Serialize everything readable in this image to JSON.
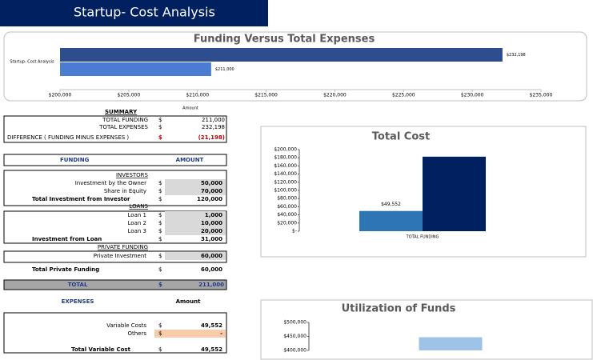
{
  "header": {
    "title": "Startup- Cost Analysis"
  },
  "summary": {
    "title": "SUMMARY",
    "amount_header": "Amount",
    "rows": [
      [
        "TOTAL FUNDING",
        "$",
        "211,000"
      ],
      [
        "TOTAL EXPENSES",
        "$",
        "232,198"
      ],
      [
        "DIFFERENCE ( FUNDING MINUS EXPENSES )",
        "$",
        "(21,198)"
      ]
    ]
  },
  "funding": {
    "headers": [
      "FUNDING",
      "AMOUNT"
    ],
    "sections": [
      {
        "title": "INVESTORS",
        "rows": [
          [
            "Investment by the Owner",
            "$",
            "50,000"
          ],
          [
            "Share in Equity",
            "$",
            "70,000"
          ]
        ],
        "total": [
          "Total Investment from Investor",
          "$",
          "120,000"
        ]
      },
      {
        "title": "LOANS",
        "rows": [
          [
            "Loan 1",
            "$",
            "1,000"
          ],
          [
            "Loan 2",
            "$",
            "10,000"
          ],
          [
            "Loan 3",
            "$",
            "20,000"
          ]
        ],
        "total": [
          "Investment from Loan",
          "$",
          "31,000"
        ]
      },
      {
        "title": "PRIVATE FUNDING",
        "rows": [
          [
            "Private Investment",
            "$",
            "60,000"
          ]
        ],
        "total": [
          "Total Private Funding",
          "$",
          "60,000"
        ]
      }
    ],
    "total": [
      "TOTAL",
      "$",
      "211,000"
    ]
  },
  "expenses": {
    "headers": [
      "EXPENSES",
      "Amount"
    ],
    "rows": [
      [
        "Variable Costs",
        "$",
        "49,552"
      ],
      [
        "Others",
        "$",
        "-"
      ]
    ],
    "total": [
      "Total Variable Cost",
      "$",
      "49,552"
    ]
  },
  "chart_data": [
    {
      "type": "hbar",
      "title": "Funding Versus Total Expenses",
      "categories": [
        "Startup- Cost Analysis"
      ],
      "series": [
        {
          "color": "#2e4d8e",
          "values": [
            232198
          ],
          "value_labels": [
            "$232,198"
          ]
        },
        {
          "color": "#4a7dd1",
          "values": [
            211000
          ],
          "value_labels": [
            "$211,000"
          ]
        }
      ],
      "xlim": [
        200000,
        235000
      ],
      "xticks": [
        {
          "value": 200000,
          "label": "$200,000"
        },
        {
          "value": 205000,
          "label": "$205,000"
        },
        {
          "value": 210000,
          "label": "$210,000"
        },
        {
          "value": 215000,
          "label": "$215,000"
        },
        {
          "value": 220000,
          "label": "$220,000"
        },
        {
          "value": 225000,
          "label": "$225,000"
        },
        {
          "value": 230000,
          "label": "$230,000"
        },
        {
          "value": 235000,
          "label": "$235,000"
        }
      ]
    },
    {
      "type": "bar",
      "title": "Total Cost",
      "categories": [
        "TOTAL FUNDING"
      ],
      "series": [
        {
          "color": "#2e75b6",
          "values": [
            49552
          ],
          "value_labels": [
            "$49,552"
          ]
        },
        {
          "color": "#002060",
          "values": [
            182646
          ]
        }
      ],
      "ylim": [
        0,
        200000
      ],
      "yticks": [
        {
          "value": 0,
          "label": "$-"
        },
        {
          "value": 20000,
          "label": "$20,000"
        },
        {
          "value": 40000,
          "label": "$40,000"
        },
        {
          "value": 60000,
          "label": "$60,000"
        },
        {
          "value": 80000,
          "label": "$80,000"
        },
        {
          "value": 100000,
          "label": "$100,000"
        },
        {
          "value": 120000,
          "label": "$120,000"
        },
        {
          "value": 140000,
          "label": "$140,000"
        },
        {
          "value": 160000,
          "label": "$160,000"
        },
        {
          "value": 180000,
          "label": "$180,000"
        },
        {
          "value": 200000,
          "label": "$200,000"
        }
      ]
    },
    {
      "type": "bar",
      "title": "Utilization of Funds",
      "categories": [
        null
      ],
      "series": [
        {
          "color": "#9dc3e6",
          "values": [
            447000
          ]
        }
      ],
      "ylim": [
        400000,
        500000
      ],
      "yticks": [
        {
          "value": 400000,
          "label": "$400,000"
        },
        {
          "value": 450000,
          "label": "$450,000"
        },
        {
          "value": 500000,
          "label": "$500,000"
        }
      ]
    }
  ]
}
